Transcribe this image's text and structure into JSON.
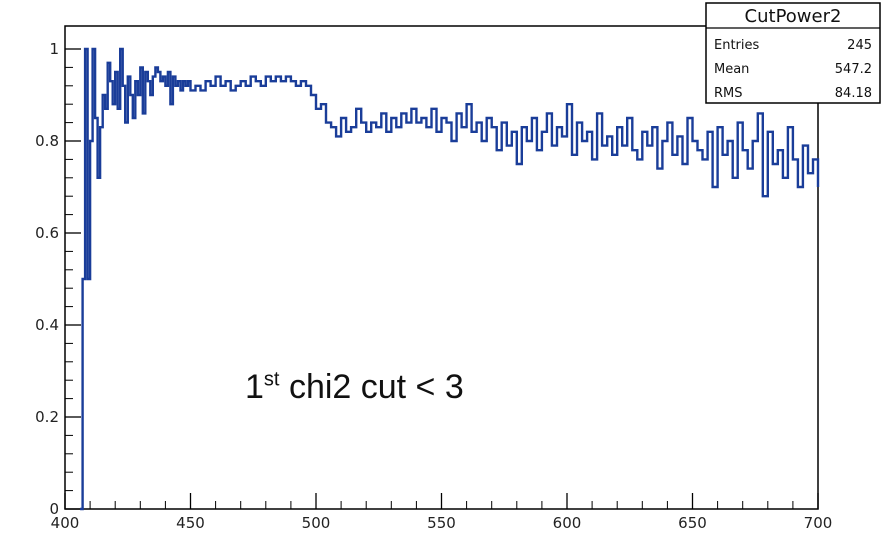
{
  "chart_data": {
    "type": "histogram-line",
    "title": "",
    "xlabel": "",
    "ylabel": "",
    "xlim": [
      400,
      700
    ],
    "ylim": [
      0,
      1.05
    ],
    "x_ticks": [
      "400",
      "450",
      "500",
      "550",
      "600",
      "650",
      "700"
    ],
    "y_ticks": [
      "0",
      "0.2",
      "0.4",
      "0.6",
      "0.8",
      "1"
    ],
    "series_color": "#1a3d99",
    "stats_box": {
      "name": "CutPower2",
      "rows": [
        {
          "label": "Entries",
          "value": "245"
        },
        {
          "label": "Mean",
          "value": "547.2"
        },
        {
          "label": "RMS",
          "value": "84.18"
        }
      ]
    },
    "annotation": {
      "ordinal": "1",
      "suffix": "st",
      "text": "chi2 cut < 3"
    },
    "points": [
      [
        406,
        0.0
      ],
      [
        407,
        0.5
      ],
      [
        408,
        1.0
      ],
      [
        409,
        0.5
      ],
      [
        410,
        0.8
      ],
      [
        411,
        1.0
      ],
      [
        412,
        0.85
      ],
      [
        413,
        0.72
      ],
      [
        414,
        0.83
      ],
      [
        415,
        0.9
      ],
      [
        416,
        0.87
      ],
      [
        417,
        0.97
      ],
      [
        418,
        0.93
      ],
      [
        419,
        0.88
      ],
      [
        420,
        0.95
      ],
      [
        421,
        0.87
      ],
      [
        422,
        1.0
      ],
      [
        423,
        0.92
      ],
      [
        424,
        0.84
      ],
      [
        425,
        0.94
      ],
      [
        426,
        0.9
      ],
      [
        427,
        0.85
      ],
      [
        428,
        0.93
      ],
      [
        429,
        0.9
      ],
      [
        430,
        0.96
      ],
      [
        431,
        0.86
      ],
      [
        432,
        0.95
      ],
      [
        433,
        0.93
      ],
      [
        434,
        0.9
      ],
      [
        435,
        0.94
      ],
      [
        436,
        0.96
      ],
      [
        437,
        0.95
      ],
      [
        438,
        0.93
      ],
      [
        439,
        0.94
      ],
      [
        440,
        0.92
      ],
      [
        441,
        0.95
      ],
      [
        442,
        0.88
      ],
      [
        443,
        0.94
      ],
      [
        444,
        0.92
      ],
      [
        445,
        0.93
      ],
      [
        446,
        0.91
      ],
      [
        447,
        0.93
      ],
      [
        448,
        0.92
      ],
      [
        449,
        0.93
      ],
      [
        450,
        0.91
      ],
      [
        452,
        0.92
      ],
      [
        454,
        0.91
      ],
      [
        456,
        0.93
      ],
      [
        458,
        0.92
      ],
      [
        460,
        0.94
      ],
      [
        462,
        0.92
      ],
      [
        464,
        0.93
      ],
      [
        466,
        0.91
      ],
      [
        468,
        0.92
      ],
      [
        470,
        0.93
      ],
      [
        472,
        0.92
      ],
      [
        474,
        0.94
      ],
      [
        476,
        0.93
      ],
      [
        478,
        0.92
      ],
      [
        480,
        0.94
      ],
      [
        482,
        0.93
      ],
      [
        484,
        0.94
      ],
      [
        486,
        0.93
      ],
      [
        488,
        0.94
      ],
      [
        490,
        0.93
      ],
      [
        492,
        0.92
      ],
      [
        494,
        0.93
      ],
      [
        496,
        0.92
      ],
      [
        498,
        0.9
      ],
      [
        500,
        0.87
      ],
      [
        502,
        0.88
      ],
      [
        504,
        0.84
      ],
      [
        506,
        0.83
      ],
      [
        508,
        0.81
      ],
      [
        510,
        0.85
      ],
      [
        512,
        0.82
      ],
      [
        514,
        0.83
      ],
      [
        516,
        0.87
      ],
      [
        518,
        0.84
      ],
      [
        520,
        0.82
      ],
      [
        522,
        0.84
      ],
      [
        524,
        0.83
      ],
      [
        526,
        0.86
      ],
      [
        528,
        0.82
      ],
      [
        530,
        0.85
      ],
      [
        532,
        0.83
      ],
      [
        534,
        0.86
      ],
      [
        536,
        0.84
      ],
      [
        538,
        0.87
      ],
      [
        540,
        0.84
      ],
      [
        542,
        0.85
      ],
      [
        544,
        0.83
      ],
      [
        546,
        0.87
      ],
      [
        548,
        0.82
      ],
      [
        550,
        0.85
      ],
      [
        552,
        0.84
      ],
      [
        554,
        0.8
      ],
      [
        556,
        0.86
      ],
      [
        558,
        0.83
      ],
      [
        560,
        0.88
      ],
      [
        562,
        0.82
      ],
      [
        564,
        0.84
      ],
      [
        566,
        0.8
      ],
      [
        568,
        0.85
      ],
      [
        570,
        0.83
      ],
      [
        572,
        0.78
      ],
      [
        574,
        0.84
      ],
      [
        576,
        0.79
      ],
      [
        578,
        0.82
      ],
      [
        580,
        0.75
      ],
      [
        582,
        0.83
      ],
      [
        584,
        0.8
      ],
      [
        586,
        0.85
      ],
      [
        588,
        0.78
      ],
      [
        590,
        0.82
      ],
      [
        592,
        0.86
      ],
      [
        594,
        0.79
      ],
      [
        596,
        0.83
      ],
      [
        598,
        0.81
      ],
      [
        600,
        0.88
      ],
      [
        602,
        0.77
      ],
      [
        604,
        0.84
      ],
      [
        606,
        0.8
      ],
      [
        608,
        0.82
      ],
      [
        610,
        0.76
      ],
      [
        612,
        0.86
      ],
      [
        614,
        0.79
      ],
      [
        616,
        0.81
      ],
      [
        618,
        0.77
      ],
      [
        620,
        0.83
      ],
      [
        622,
        0.79
      ],
      [
        624,
        0.85
      ],
      [
        626,
        0.78
      ],
      [
        628,
        0.76
      ],
      [
        630,
        0.82
      ],
      [
        632,
        0.79
      ],
      [
        634,
        0.83
      ],
      [
        636,
        0.74
      ],
      [
        638,
        0.8
      ],
      [
        640,
        0.84
      ],
      [
        642,
        0.77
      ],
      [
        644,
        0.81
      ],
      [
        646,
        0.75
      ],
      [
        648,
        0.85
      ],
      [
        650,
        0.8
      ],
      [
        652,
        0.78
      ],
      [
        654,
        0.76
      ],
      [
        656,
        0.82
      ],
      [
        658,
        0.7
      ],
      [
        660,
        0.83
      ],
      [
        662,
        0.77
      ],
      [
        664,
        0.8
      ],
      [
        666,
        0.72
      ],
      [
        668,
        0.84
      ],
      [
        670,
        0.78
      ],
      [
        672,
        0.74
      ],
      [
        674,
        0.8
      ],
      [
        676,
        0.86
      ],
      [
        678,
        0.68
      ],
      [
        680,
        0.82
      ],
      [
        682,
        0.75
      ],
      [
        684,
        0.78
      ],
      [
        686,
        0.72
      ],
      [
        688,
        0.83
      ],
      [
        690,
        0.76
      ],
      [
        692,
        0.7
      ],
      [
        694,
        0.79
      ],
      [
        696,
        0.73
      ],
      [
        698,
        0.76
      ],
      [
        700,
        0.7
      ]
    ]
  }
}
